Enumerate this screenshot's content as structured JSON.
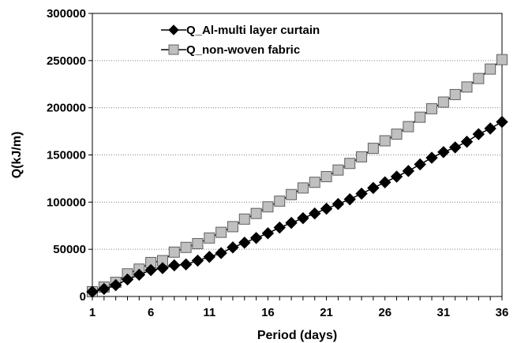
{
  "chart_data": {
    "type": "line",
    "xlabel": "Period (days)",
    "ylabel": "Q(kJ/m)",
    "xlim": [
      1,
      36
    ],
    "ylim": [
      0,
      300000
    ],
    "x_ticks": [
      "1",
      "6",
      "11",
      "16",
      "21",
      "26",
      "31",
      "36"
    ],
    "y_ticks": [
      "0",
      "50000",
      "100000",
      "150000",
      "200000",
      "250000",
      "300000"
    ],
    "grid": "horizontal dotted",
    "legend": "top-left",
    "x": [
      1,
      2,
      3,
      4,
      5,
      6,
      7,
      8,
      9,
      10,
      11,
      12,
      13,
      14,
      15,
      16,
      17,
      18,
      19,
      20,
      21,
      22,
      23,
      24,
      25,
      26,
      27,
      28,
      29,
      30,
      31,
      32,
      33,
      34,
      35,
      36
    ],
    "series": [
      {
        "name": "Q_Al-multi layer curtain",
        "marker": "diamond",
        "color": "#000000",
        "values": [
          5000,
          8000,
          12000,
          18000,
          23000,
          28000,
          30000,
          33000,
          34000,
          38000,
          42000,
          46000,
          52000,
          57000,
          62000,
          67000,
          73000,
          78000,
          83000,
          88000,
          93000,
          98000,
          103000,
          109000,
          115000,
          121000,
          127000,
          133000,
          140000,
          147000,
          153000,
          158000,
          164000,
          172000,
          178000,
          185000
        ]
      },
      {
        "name": "Q_non-woven fabric",
        "marker": "square",
        "color": "#c0c0c0",
        "values": [
          5000,
          10000,
          15000,
          24000,
          29000,
          36000,
          38000,
          47000,
          52000,
          56000,
          62000,
          68000,
          74000,
          82000,
          88000,
          95000,
          101000,
          108000,
          115000,
          121000,
          127000,
          134000,
          141000,
          148000,
          157000,
          165000,
          172000,
          180000,
          190000,
          199000,
          206000,
          214000,
          222000,
          231000,
          241000,
          251000
        ]
      }
    ]
  }
}
